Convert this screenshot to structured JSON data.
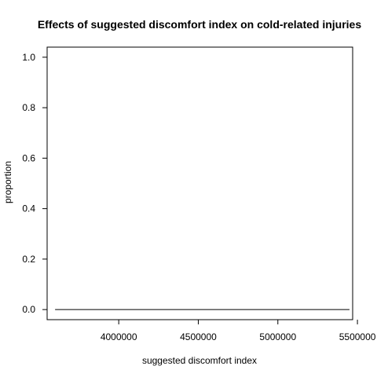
{
  "chart_data": {
    "type": "line",
    "title": "Effects of suggested discomfort index on cold-related injuries",
    "xlabel": "suggested discomfort index",
    "ylabel": "proportion",
    "xlim": [
      3550000,
      5470000
    ],
    "ylim": [
      -0.04,
      1.04
    ],
    "x_ticks": [
      4000000,
      4500000,
      5000000,
      5500000
    ],
    "y_ticks": [
      0.0,
      0.2,
      0.4,
      0.6,
      0.8,
      1.0
    ],
    "x_tick_labels": [
      "4000000",
      "4500000",
      "5000000",
      "5500000"
    ],
    "y_tick_labels": [
      "0.0",
      "0.2",
      "0.4",
      "0.6",
      "0.8",
      "1.0"
    ],
    "grid": false,
    "series": [
      {
        "x": [
          3600000,
          5450000
        ],
        "y": [
          0.0,
          0.0
        ],
        "color": "#000000"
      }
    ]
  }
}
